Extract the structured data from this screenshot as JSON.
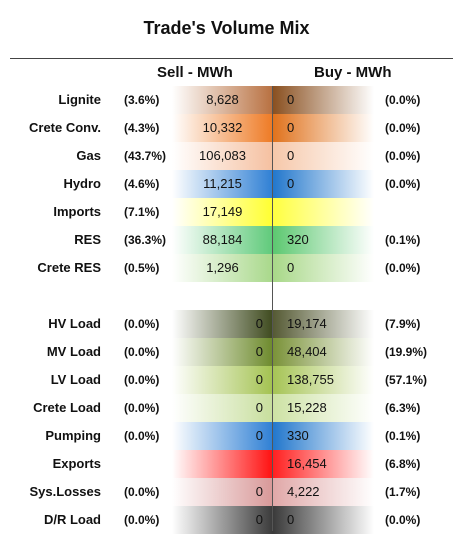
{
  "title": "Trade's Volume Mix",
  "headers": {
    "sell": "Sell - MWh",
    "buy": "Buy - MWh"
  },
  "rows": [
    {
      "label": "Lignite",
      "sell_pct": "(3.6%)",
      "sell": "8,628",
      "buy": "0",
      "buy_pct": "(0.0%)",
      "sell_color": "#b87040",
      "buy_color": "#8a5020",
      "sell_align": "center"
    },
    {
      "label": "Crete Conv.",
      "sell_pct": "(4.3%)",
      "sell": "10,332",
      "buy": "0",
      "buy_pct": "(0.0%)",
      "sell_color": "#ee7a24",
      "buy_color": "#e0721c",
      "sell_align": "center"
    },
    {
      "label": "Gas",
      "sell_pct": "(43.7%)",
      "sell": "106,083",
      "buy": "0",
      "buy_pct": "(0.0%)",
      "sell_color": "#f5c0a0",
      "buy_color": "#f6c8aa",
      "sell_align": "center"
    },
    {
      "label": "Hydro",
      "sell_pct": "(4.6%)",
      "sell": "11,215",
      "buy": "0",
      "buy_pct": "(0.0%)",
      "sell_color": "#2e7fd4",
      "buy_color": "#2277cc",
      "sell_align": "center"
    },
    {
      "label": "Imports",
      "sell_pct": "(7.1%)",
      "sell": "17,149",
      "buy": "",
      "buy_pct": "",
      "sell_color": "#ffff30",
      "buy_color": "#ffff40",
      "sell_align": "center"
    },
    {
      "label": "RES",
      "sell_pct": "(36.3%)",
      "sell": "88,184",
      "buy": "320",
      "buy_pct": "(0.1%)",
      "sell_color": "#5fca7a",
      "buy_color": "#5cc870",
      "sell_align": "center"
    },
    {
      "label": "Crete RES",
      "sell_pct": "(0.5%)",
      "sell": "1,296",
      "buy": "0",
      "buy_pct": "(0.0%)",
      "sell_color": "#a8d88a",
      "buy_color": "#a8d888",
      "sell_align": "center"
    },
    {
      "label": "HV Load",
      "sell_pct": "(0.0%)",
      "sell": "0",
      "buy": "19,174",
      "buy_pct": "(7.9%)",
      "sell_color": "#3e4a1e",
      "buy_color": "#555a34",
      "sell_align": "right"
    },
    {
      "label": "MV Load",
      "sell_pct": "(0.0%)",
      "sell": "0",
      "buy": "48,404",
      "buy_pct": "(19.9%)",
      "sell_color": "#6d8a2c",
      "buy_color": "#7a9238",
      "sell_align": "right"
    },
    {
      "label": "LV Load",
      "sell_pct": "(0.0%)",
      "sell": "0",
      "buy": "138,755",
      "buy_pct": "(57.1%)",
      "sell_color": "#a3c250",
      "buy_color": "#a6c455",
      "sell_align": "right"
    },
    {
      "label": "Crete Load",
      "sell_pct": "(0.0%)",
      "sell": "0",
      "buy": "15,228",
      "buy_pct": "(6.3%)",
      "sell_color": "#c7de9c",
      "buy_color": "#cde2a4",
      "sell_align": "right"
    },
    {
      "label": "Pumping",
      "sell_pct": "(0.0%)",
      "sell": "0",
      "buy": "330",
      "buy_pct": "(0.1%)",
      "sell_color": "#2e7fd4",
      "buy_color": "#2277cc",
      "sell_align": "right"
    },
    {
      "label": "Exports",
      "sell_pct": "",
      "sell": "",
      "buy": "16,454",
      "buy_pct": "(6.8%)",
      "sell_color": "#ff1010",
      "buy_color": "#ff2020",
      "sell_align": "right"
    },
    {
      "label": "Sys.Losses",
      "sell_pct": "(0.0%)",
      "sell": "0",
      "buy": "4,222",
      "buy_pct": "(1.7%)",
      "sell_color": "#d89898",
      "buy_color": "#e0a8a8",
      "sell_align": "right"
    },
    {
      "label": "D/R Load",
      "sell_pct": "(0.0%)",
      "sell": "0",
      "buy": "0",
      "buy_pct": "(0.0%)",
      "sell_color": "#3a3a3a",
      "buy_color": "#3a3a3a",
      "sell_align": "right"
    }
  ]
}
